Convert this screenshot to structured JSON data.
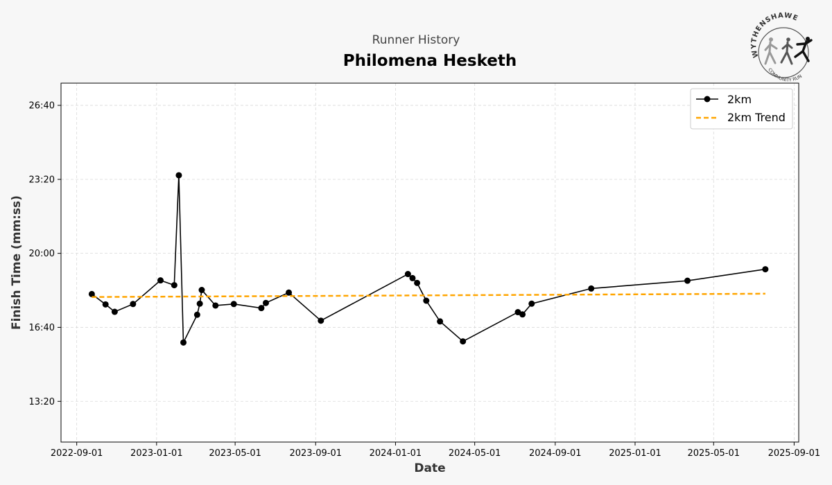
{
  "header": {
    "subtitle": "Runner History",
    "title": "Philomena Hesketh"
  },
  "logo": {
    "top_text": "WYTHENSHAWE",
    "bottom_text": "COMMUNITY RUN"
  },
  "chart_data": {
    "type": "line",
    "xlabel": "Date",
    "ylabel": "Finish Time (mm:ss)",
    "xlim": [
      "2022-08-08",
      "2025-09-08"
    ],
    "ylim_seconds": [
      690,
      1660
    ],
    "x_ticks": [
      "2022-09-01",
      "2023-01-01",
      "2023-05-01",
      "2023-09-01",
      "2024-01-01",
      "2024-05-01",
      "2024-09-01",
      "2025-01-01",
      "2025-05-01",
      "2025-09-01"
    ],
    "y_ticks": [
      {
        "seconds": 800,
        "label": "13:20"
      },
      {
        "seconds": 1000,
        "label": "16:40"
      },
      {
        "seconds": 1200,
        "label": "20:00"
      },
      {
        "seconds": 1400,
        "label": "23:20"
      },
      {
        "seconds": 1600,
        "label": "26:40"
      }
    ],
    "grid": true,
    "legend_position": "top-right",
    "series": [
      {
        "name": "2km",
        "color": "#000000",
        "marker": "circle",
        "points": [
          {
            "date": "2022-09-24",
            "time": "18:10"
          },
          {
            "date": "2022-10-15",
            "time": "17:42"
          },
          {
            "date": "2022-10-29",
            "time": "17:22"
          },
          {
            "date": "2022-11-26",
            "time": "17:43"
          },
          {
            "date": "2023-01-07",
            "time": "18:47"
          },
          {
            "date": "2023-01-28",
            "time": "18:34"
          },
          {
            "date": "2023-02-04",
            "time": "23:31"
          },
          {
            "date": "2023-02-11",
            "time": "15:59"
          },
          {
            "date": "2023-03-04",
            "time": "17:14"
          },
          {
            "date": "2023-03-08",
            "time": "17:44"
          },
          {
            "date": "2023-03-11",
            "time": "18:21"
          },
          {
            "date": "2023-04-01",
            "time": "17:39"
          },
          {
            "date": "2023-04-29",
            "time": "17:43"
          },
          {
            "date": "2023-06-10",
            "time": "17:32"
          },
          {
            "date": "2023-06-17",
            "time": "17:46"
          },
          {
            "date": "2023-07-22",
            "time": "18:14"
          },
          {
            "date": "2023-09-09",
            "time": "16:58"
          },
          {
            "date": "2024-01-20",
            "time": "19:04"
          },
          {
            "date": "2024-01-27",
            "time": "18:53"
          },
          {
            "date": "2024-02-03",
            "time": "18:40"
          },
          {
            "date": "2024-02-17",
            "time": "17:52"
          },
          {
            "date": "2024-03-09",
            "time": "16:56"
          },
          {
            "date": "2024-04-13",
            "time": "16:02"
          },
          {
            "date": "2024-07-06",
            "time": "17:21"
          },
          {
            "date": "2024-07-13",
            "time": "17:15"
          },
          {
            "date": "2024-07-27",
            "time": "17:44"
          },
          {
            "date": "2024-10-26",
            "time": "18:25"
          },
          {
            "date": "2025-03-22",
            "time": "18:46"
          },
          {
            "date": "2025-07-19",
            "time": "19:17"
          }
        ]
      },
      {
        "name": "2km Trend",
        "color": "#ffa500",
        "style": "dashed",
        "points": [
          {
            "date": "2022-09-24",
            "time": "18:02"
          },
          {
            "date": "2025-07-19",
            "time": "18:11"
          }
        ]
      }
    ]
  }
}
